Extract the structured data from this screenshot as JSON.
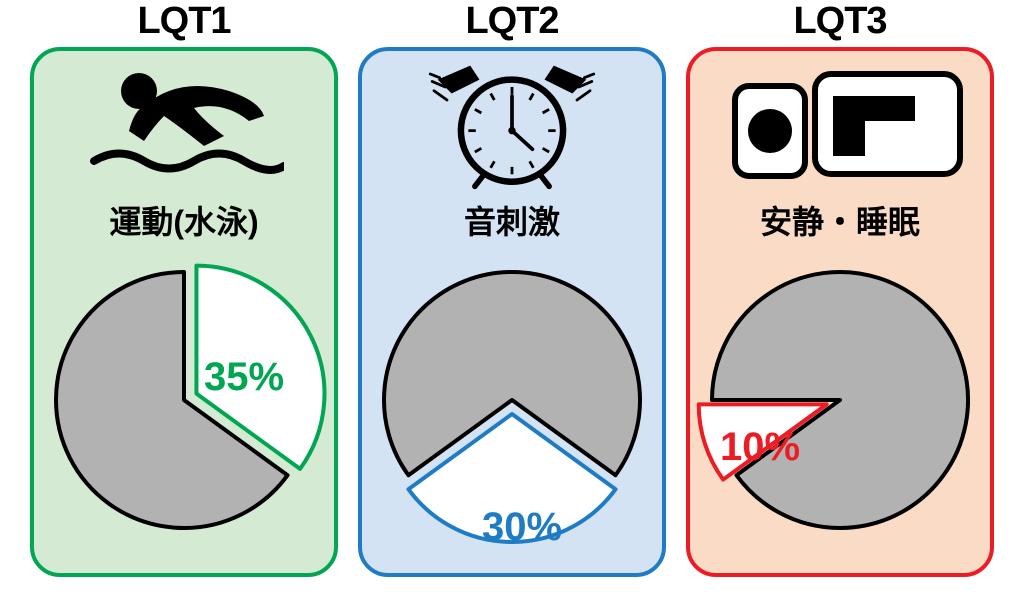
{
  "panels": [
    {
      "title": "LQT1",
      "label": "運動(水泳)",
      "percent": "35%",
      "borderColor": "#00a651",
      "bgColor": "#d5ead2",
      "sliceColor": "#00a651",
      "sliceTextColor": "#00a651",
      "greyColor": "#b2b2b2",
      "sliceStart": 0,
      "sliceEnd": 126,
      "pieOutline": "#000000"
    },
    {
      "title": "LQT2",
      "label": "音刺激",
      "percent": "30%",
      "borderColor": "#1e7cc4",
      "bgColor": "#d4e3f4",
      "sliceColor": "#1e7cc4",
      "sliceTextColor": "#1e7cc4",
      "greyColor": "#b2b2b2",
      "sliceStart": 126,
      "sliceEnd": 234,
      "pieOutline": "#000000"
    },
    {
      "title": "LQT3",
      "label": "安静・睡眠",
      "percent": "10%",
      "borderColor": "#ed1c24",
      "bgColor": "#fadcc6",
      "sliceColor": "#ed1c24",
      "sliceTextColor": "#ed1c24",
      "greyColor": "#b2b2b2",
      "sliceStart": 234,
      "sliceEnd": 270,
      "pieOutline": "#000000"
    }
  ],
  "globals": {
    "titleFontSize": 38,
    "labelFontSize": 32,
    "pctFontSize": 40,
    "pieRadius": 128,
    "sliceExplode": 14,
    "outlineWidth": 4
  }
}
